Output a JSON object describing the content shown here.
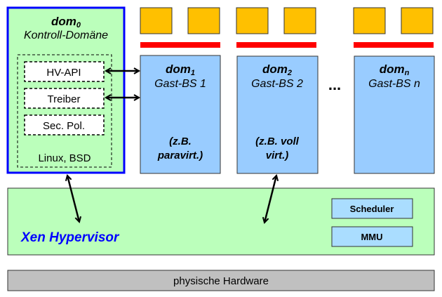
{
  "dom0": {
    "name": "dom",
    "sub": "0",
    "subtitle": "Kontroll-Domäne",
    "os": "Linux, BSD",
    "modules": [
      "HV-API",
      "Treiber",
      "Sec. Pol."
    ]
  },
  "guests": [
    {
      "name": "dom",
      "sub": "1",
      "subtitle": "Gast-BS 1",
      "note1": "(z.B.",
      "note2": "paravirt.)"
    },
    {
      "name": "dom",
      "sub": "2",
      "subtitle": "Gast-BS 2",
      "note1": "(z.B. voll",
      "note2": "virt.)"
    },
    {
      "name": "dom",
      "sub": "n",
      "subtitle": "Gast-BS n",
      "note1": "",
      "note2": ""
    }
  ],
  "ellipsis": "...",
  "hypervisor": {
    "label": "Xen Hypervisor",
    "components": [
      "Scheduler",
      "MMU"
    ]
  },
  "hardware": {
    "label": "physische Hardware"
  },
  "colors": {
    "green": "#bbffbb",
    "blue_border": "#0000ff",
    "guest": "#99ccff",
    "component": "#aaddff",
    "cpu": "#ffc000",
    "bar": "#ff0000",
    "hardware": "#c0c0c0",
    "xen_text": "#0000ff"
  }
}
